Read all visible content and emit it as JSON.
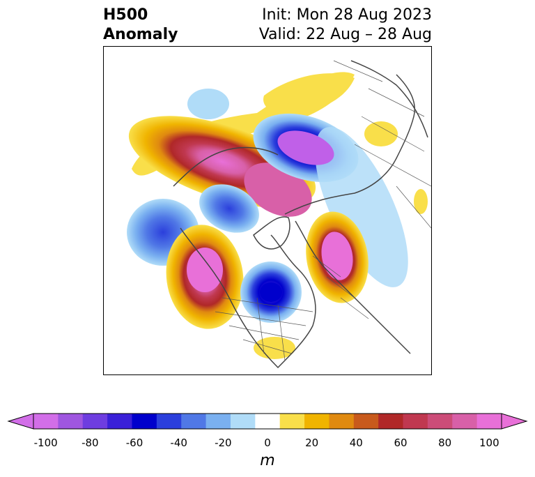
{
  "title": {
    "left_line1": "H500",
    "left_line2": "Anomaly",
    "right_line1": "Init: Mon 28 Aug 2023",
    "right_line2": "Valid: 22 Aug – 28 Aug"
  },
  "colorbar": {
    "unit": "m",
    "ticks": [
      "-100",
      "-80",
      "-60",
      "-40",
      "-20",
      "0",
      "20",
      "40",
      "60",
      "80",
      "100"
    ],
    "colors": [
      "#d26ee8",
      "#9f56e0",
      "#6e3de0",
      "#3a20d8",
      "#0000cc",
      "#2b3fdc",
      "#5078e6",
      "#7ab0f0",
      "#b0dcf8",
      "#ffffff",
      "#f9df4a",
      "#f0b400",
      "#e08a10",
      "#c85a1c",
      "#b02828",
      "#c03850",
      "#cc4c78",
      "#d860a8",
      "#e870d8"
    ],
    "extend_low_color": "#d26ee8",
    "extend_high_color": "#e870d8"
  }
}
